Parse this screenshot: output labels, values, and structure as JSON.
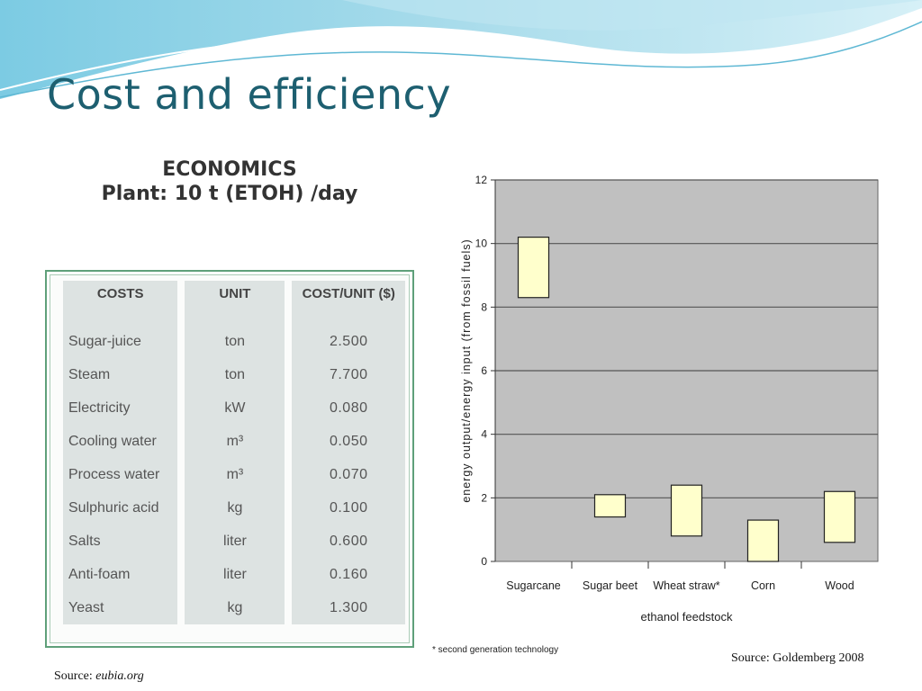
{
  "slide": {
    "title": "Cost and efficiency",
    "source_left_prefix": "Source: ",
    "source_left_site": "eubia.org",
    "source_right": "Source: Goldemberg 2008"
  },
  "economics": {
    "heading": "ECONOMICS",
    "subheading": "Plant: 10 t (ETOH) /day",
    "columns": [
      "COSTS",
      "UNIT",
      "COST/UNIT ($)"
    ],
    "rows": [
      {
        "cost": "Sugar-juice",
        "unit": "ton",
        "value": "2.500"
      },
      {
        "cost": "Steam",
        "unit": "ton",
        "value": "7.700"
      },
      {
        "cost": "Electricity",
        "unit": "kW",
        "value": "0.080"
      },
      {
        "cost": "Cooling water",
        "unit": "m³",
        "value": "0.050"
      },
      {
        "cost": "Process water",
        "unit": "m³",
        "value": "0.070"
      },
      {
        "cost": "Sulphuric acid",
        "unit": "kg",
        "value": "0.100"
      },
      {
        "cost": "Salts",
        "unit": "liter",
        "value": "0.600"
      },
      {
        "cost": "Anti-foam",
        "unit": "liter",
        "value": "0.160"
      },
      {
        "cost": "Yeast",
        "unit": "kg",
        "value": "1.300"
      }
    ]
  },
  "chart_data": {
    "type": "bar",
    "subtype": "floating-range",
    "title": "",
    "xlabel": "ethanol feedstock",
    "ylabel": "energy output/energy input (from fossil fuels)",
    "ylim": [
      0,
      12
    ],
    "yticks": [
      0,
      2,
      4,
      6,
      8,
      10,
      12
    ],
    "grid": true,
    "categories": [
      "Sugarcane",
      "Sugar beet",
      "Wheat straw*",
      "Corn",
      "Wood"
    ],
    "ranges": [
      {
        "low": 8.3,
        "high": 10.2
      },
      {
        "low": 1.4,
        "high": 2.1
      },
      {
        "low": 0.8,
        "high": 2.4
      },
      {
        "low": 0.0,
        "high": 1.3
      },
      {
        "low": 0.6,
        "high": 2.2
      }
    ],
    "footnote": "* second generation technology",
    "colors": {
      "plot_bg": "#c0c0c0",
      "bar_fill": "#ffffcc",
      "grid": "#555555"
    }
  }
}
